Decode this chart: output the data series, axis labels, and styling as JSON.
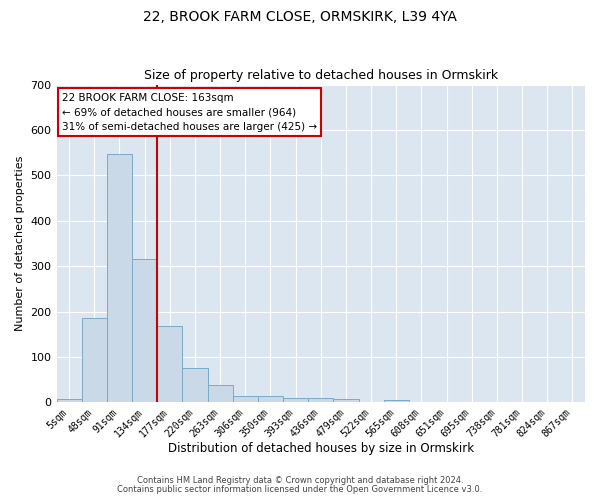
{
  "title": "22, BROOK FARM CLOSE, ORMSKIRK, L39 4YA",
  "subtitle": "Size of property relative to detached houses in Ormskirk",
  "xlabel": "Distribution of detached houses by size in Ormskirk",
  "ylabel": "Number of detached properties",
  "bar_values": [
    8,
    185,
    548,
    315,
    168,
    75,
    38,
    15,
    15,
    10,
    10,
    8,
    0,
    5,
    0,
    0,
    0,
    0,
    0,
    0,
    0
  ],
  "bar_labels": [
    "5sqm",
    "48sqm",
    "91sqm",
    "134sqm",
    "177sqm",
    "220sqm",
    "263sqm",
    "306sqm",
    "350sqm",
    "393sqm",
    "436sqm",
    "479sqm",
    "522sqm",
    "565sqm",
    "608sqm",
    "651sqm",
    "695sqm",
    "738sqm",
    "781sqm",
    "824sqm",
    "867sqm"
  ],
  "bar_color": "#c9d9e8",
  "bar_edge_color": "#7aaac8",
  "vline_color": "#cc0000",
  "vline_x": 3.5,
  "annotation_text_line1": "22 BROOK FARM CLOSE: 163sqm",
  "annotation_text_line2": "← 69% of detached houses are smaller (964)",
  "annotation_text_line3": "31% of semi-detached houses are larger (425) →",
  "ylim": [
    0,
    700
  ],
  "yticks": [
    0,
    100,
    200,
    300,
    400,
    500,
    600,
    700
  ],
  "plot_bg_color": "#dce6f0",
  "footer_line1": "Contains HM Land Registry data © Crown copyright and database right 2024.",
  "footer_line2": "Contains public sector information licensed under the Open Government Licence v3.0.",
  "title_fontsize": 10,
  "subtitle_fontsize": 9,
  "tick_label_fontsize": 7,
  "ylabel_fontsize": 8,
  "xlabel_fontsize": 8.5
}
